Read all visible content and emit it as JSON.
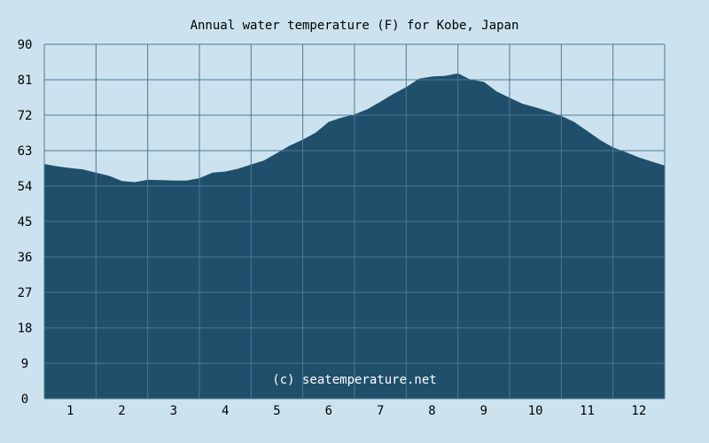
{
  "chart_data": {
    "type": "area",
    "title": "Annual water temperature (F) for Kobe, Japan",
    "watermark": "(c) seatemperature.net",
    "xlabel": "",
    "ylabel": "",
    "ylim": [
      0,
      90
    ],
    "xlim": [
      0.5,
      12.5
    ],
    "yticks": [
      "0",
      "9",
      "18",
      "27",
      "36",
      "45",
      "54",
      "63",
      "72",
      "81",
      "90"
    ],
    "xticks": [
      "1",
      "2",
      "3",
      "4",
      "5",
      "6",
      "7",
      "8",
      "9",
      "10",
      "11",
      "12"
    ],
    "grid": true,
    "x": [
      0.5,
      0.75,
      1.0,
      1.25,
      1.5,
      1.75,
      2.0,
      2.25,
      2.5,
      2.75,
      3.0,
      3.25,
      3.5,
      3.75,
      4.0,
      4.25,
      4.5,
      4.75,
      5.0,
      5.25,
      5.5,
      5.75,
      6.0,
      6.25,
      6.5,
      6.75,
      7.0,
      7.25,
      7.5,
      7.75,
      8.0,
      8.25,
      8.5,
      8.75,
      9.0,
      9.25,
      9.5,
      9.75,
      10.0,
      10.25,
      10.5,
      10.75,
      11.0,
      11.25,
      11.5,
      11.75,
      12.0,
      12.25,
      12.5
    ],
    "values": [
      59.6,
      59.0,
      58.6,
      58.2,
      57.4,
      56.6,
      55.3,
      55.0,
      55.6,
      55.5,
      55.4,
      55.4,
      56.0,
      57.4,
      57.7,
      58.4,
      59.5,
      60.5,
      62.4,
      64.3,
      65.8,
      67.6,
      70.3,
      71.4,
      72.2,
      73.5,
      75.4,
      77.4,
      79.1,
      81.3,
      81.8,
      82.0,
      82.6,
      81.0,
      80.5,
      78.0,
      76.4,
      74.9,
      74.0,
      73.0,
      71.8,
      70.3,
      68.0,
      65.7,
      63.8,
      62.6,
      61.3,
      60.2,
      59.2
    ],
    "colors": {
      "background": "#cce3ef",
      "area": "#1f4f6b",
      "grid": "#4c7896",
      "text": "#000000",
      "watermark": "#ffffff"
    }
  }
}
